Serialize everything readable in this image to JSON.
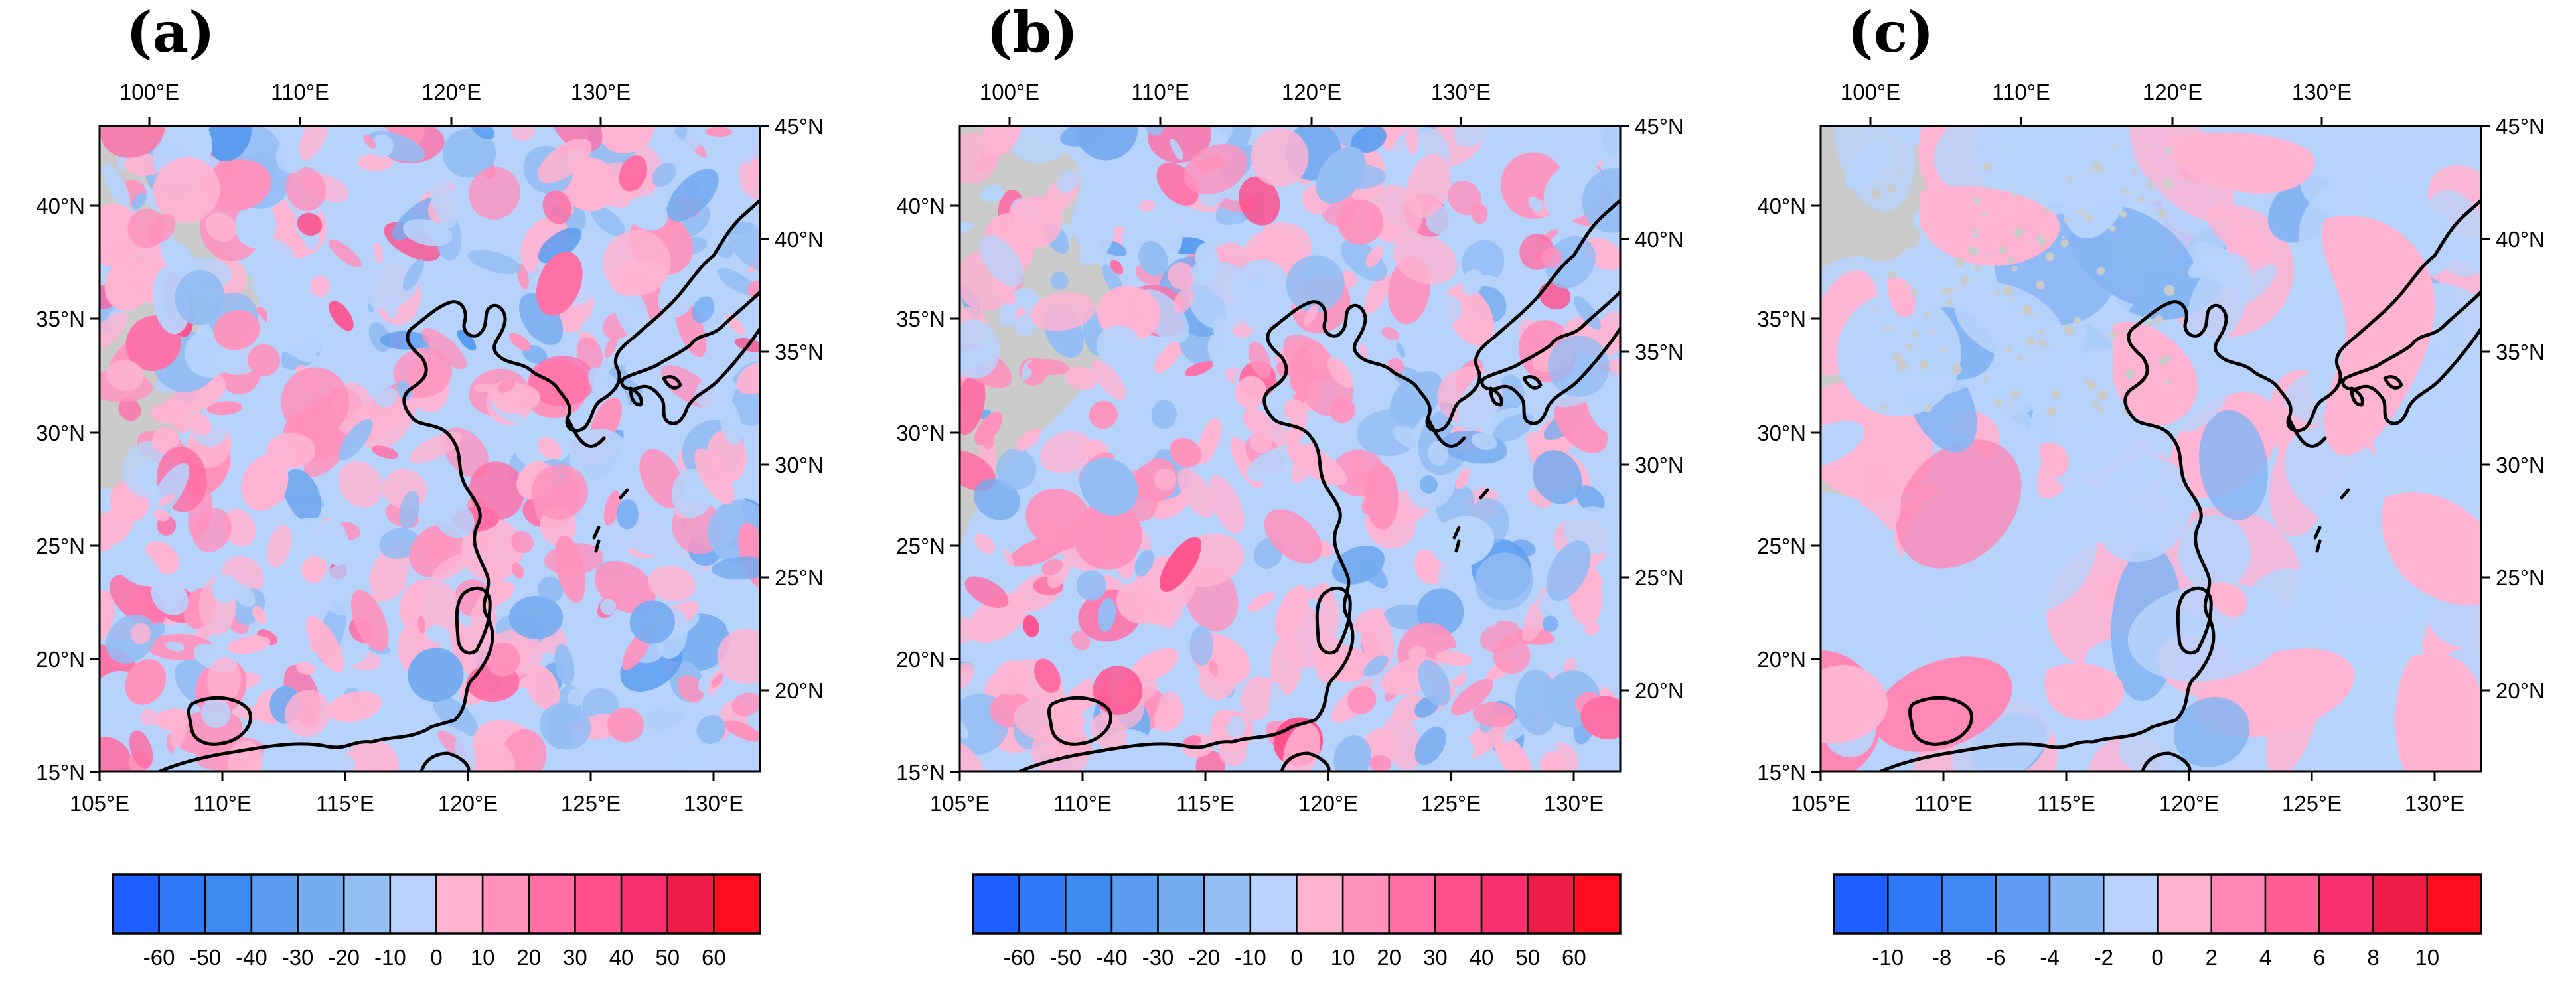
{
  "figure": {
    "panels": [
      {
        "label": "(a)",
        "top_lon_labels": [
          "100°E",
          "110°E",
          "120°E",
          "130°E"
        ],
        "bottom_lon_labels": [
          "105°E",
          "110°E",
          "115°E",
          "120°E",
          "125°E",
          "130°E"
        ],
        "left_lat_labels": [
          "40°N",
          "35°N",
          "30°N",
          "25°N",
          "20°N",
          "15°N"
        ],
        "right_lat_labels": [
          "45°N",
          "40°N",
          "35°N",
          "30°N",
          "25°N",
          "20°N"
        ],
        "colorbar": {
          "levels": [
            "-60",
            "-50",
            "-40",
            "-30",
            "-20",
            "-10",
            "0",
            "10",
            "20",
            "30",
            "40",
            "50",
            "60"
          ],
          "colors": [
            "#1f5fff",
            "#2f78f7",
            "#3d8af0",
            "#5b9cf0",
            "#76acf0",
            "#94bdf3",
            "#b7d3fb",
            "#ffb3d1",
            "#ff92bd",
            "#ff6fa5",
            "#ff4f8a",
            "#f7306f",
            "#f01b47",
            "#ff0d1e"
          ]
        },
        "field": {
          "pos": 0.42,
          "warm_boost": 0.05,
          "strong": true
        }
      },
      {
        "label": "(b)",
        "top_lon_labels": [
          "100°E",
          "110°E",
          "120°E",
          "130°E"
        ],
        "bottom_lon_labels": [
          "105°E",
          "110°E",
          "115°E",
          "120°E",
          "125°E",
          "130°E"
        ],
        "left_lat_labels": [
          "40°N",
          "35°N",
          "30°N",
          "25°N",
          "20°N",
          "15°N"
        ],
        "right_lat_labels": [
          "45°N",
          "40°N",
          "35°N",
          "30°N",
          "25°N",
          "20°N"
        ],
        "colorbar": {
          "levels": [
            "-60",
            "-50",
            "-40",
            "-30",
            "-20",
            "-10",
            "0",
            "10",
            "20",
            "30",
            "40",
            "50",
            "60"
          ],
          "colors": [
            "#1f5fff",
            "#2f78f7",
            "#3d8af0",
            "#5b9cf0",
            "#76acf0",
            "#94bdf3",
            "#b7d3fb",
            "#ffb3d1",
            "#ff92bd",
            "#ff6fa5",
            "#ff4f8a",
            "#f7306f",
            "#f01b47",
            "#ff0d1e"
          ]
        },
        "field": {
          "pos": 0.45,
          "warm_boost": 0.08,
          "strong": true
        }
      },
      {
        "label": "(c)",
        "top_lon_labels": [
          "100°E",
          "110°E",
          "120°E",
          "130°E"
        ],
        "bottom_lon_labels": [
          "105°E",
          "110°E",
          "115°E",
          "120°E",
          "125°E",
          "130°E"
        ],
        "left_lat_labels": [
          "40°N",
          "35°N",
          "30°N",
          "25°N",
          "20°N",
          "15°N"
        ],
        "right_lat_labels": [
          "45°N",
          "40°N",
          "35°N",
          "30°N",
          "25°N",
          "20°N"
        ],
        "colorbar": {
          "levels": [
            "-10",
            "-8",
            "-6",
            "-4",
            "-2",
            "0",
            "2",
            "4",
            "6",
            "8",
            "10"
          ],
          "colors": [
            "#1f5fff",
            "#2f78f7",
            "#4189f2",
            "#5f9ef2",
            "#86b5f3",
            "#b7d3fb",
            "#ffb3d1",
            "#ff86b5",
            "#ff5f95",
            "#f7306f",
            "#f01b47",
            "#ff0d1e"
          ]
        },
        "field": {
          "pos": 0.22,
          "warm_boost": 0.0,
          "strong": false
        }
      }
    ],
    "colors": {
      "no_data": "#cbcbcb",
      "neutral_negative": "#b7d3fb",
      "neutral_positive": "#ffb3d1",
      "coastline": "#000000"
    }
  }
}
